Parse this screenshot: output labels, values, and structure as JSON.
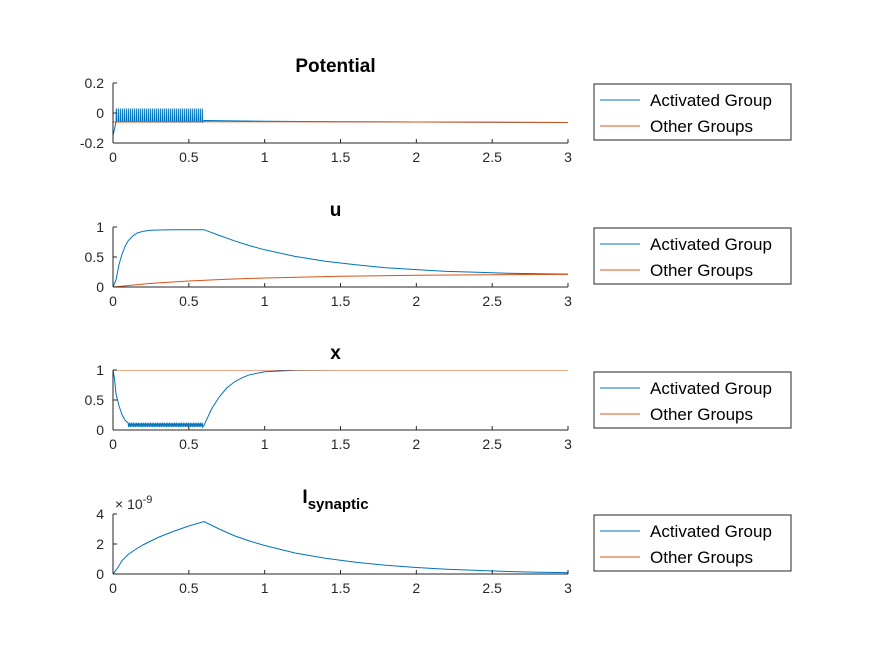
{
  "chart_data": [
    {
      "type": "line",
      "title": "Potential",
      "title_sub": "",
      "xlim": [
        0,
        3
      ],
      "ylim": [
        -0.2,
        0.2
      ],
      "xticks": [
        0,
        0.5,
        1,
        1.5,
        2,
        2.5,
        3
      ],
      "yticks": [
        -0.2,
        0,
        0.2
      ],
      "yticklabels": [
        "-0.2",
        "0",
        "0.2"
      ],
      "exponent": "",
      "legend_position": "right",
      "series": [
        {
          "name": "Activated Group",
          "color": "#0072BD",
          "description": "spiking between about -0.06 and 0.03 from t=0 to t=0.6, then near -0.055 decaying to -0.065",
          "spike_window": [
            0.02,
            0.6
          ],
          "spike_low": -0.06,
          "spike_high": 0.03,
          "spike_count": 44,
          "points": [
            [
              0,
              -0.15
            ],
            [
              0.01,
              -0.06
            ],
            [
              0.6,
              -0.05
            ],
            [
              1,
              -0.055
            ],
            [
              1.5,
              -0.058
            ],
            [
              2,
              -0.06
            ],
            [
              2.5,
              -0.062
            ],
            [
              3,
              -0.063
            ]
          ]
        },
        {
          "name": "Other Groups",
          "color": "#D95319",
          "points": [
            [
              0,
              -0.06
            ],
            [
              0.6,
              -0.058
            ],
            [
              1,
              -0.058
            ],
            [
              2,
              -0.06
            ],
            [
              3,
              -0.063
            ]
          ]
        }
      ]
    },
    {
      "type": "line",
      "title": "u",
      "title_sub": "",
      "xlim": [
        0,
        3
      ],
      "ylim": [
        0,
        1
      ],
      "xticks": [
        0,
        0.5,
        1,
        1.5,
        2,
        2.5,
        3
      ],
      "yticks": [
        0,
        0.5,
        1
      ],
      "yticklabels": [
        "0",
        "0.5",
        "1"
      ],
      "exponent": "",
      "legend_position": "right",
      "series": [
        {
          "name": "Activated Group",
          "color": "#0072BD",
          "points": [
            [
              0,
              0
            ],
            [
              0.02,
              0.12
            ],
            [
              0.04,
              0.38
            ],
            [
              0.06,
              0.55
            ],
            [
              0.08,
              0.68
            ],
            [
              0.1,
              0.77
            ],
            [
              0.13,
              0.85
            ],
            [
              0.16,
              0.9
            ],
            [
              0.2,
              0.93
            ],
            [
              0.25,
              0.945
            ],
            [
              0.3,
              0.95
            ],
            [
              0.4,
              0.955
            ],
            [
              0.5,
              0.955
            ],
            [
              0.6,
              0.955
            ],
            [
              0.7,
              0.86
            ],
            [
              0.8,
              0.77
            ],
            [
              0.9,
              0.69
            ],
            [
              1.0,
              0.62
            ],
            [
              1.2,
              0.51
            ],
            [
              1.4,
              0.43
            ],
            [
              1.6,
              0.37
            ],
            [
              1.8,
              0.32
            ],
            [
              2.0,
              0.29
            ],
            [
              2.2,
              0.26
            ],
            [
              2.4,
              0.245
            ],
            [
              2.6,
              0.23
            ],
            [
              2.8,
              0.22
            ],
            [
              3.0,
              0.215
            ]
          ]
        },
        {
          "name": "Other Groups",
          "color": "#D95319",
          "points": [
            [
              0,
              0
            ],
            [
              0.25,
              0.06
            ],
            [
              0.5,
              0.1
            ],
            [
              0.75,
              0.13
            ],
            [
              1.0,
              0.15
            ],
            [
              1.5,
              0.18
            ],
            [
              2.0,
              0.195
            ],
            [
              2.5,
              0.205
            ],
            [
              3.0,
              0.21
            ]
          ]
        }
      ]
    },
    {
      "type": "line",
      "title": "x",
      "title_sub": "",
      "xlim": [
        0,
        3
      ],
      "ylim": [
        0,
        1
      ],
      "xticks": [
        0,
        0.5,
        1,
        1.5,
        2,
        2.5,
        3
      ],
      "yticks": [
        0,
        0.5,
        1
      ],
      "yticklabels": [
        "0",
        "0.5",
        "1"
      ],
      "exponent": "",
      "legend_position": "right",
      "series": [
        {
          "name": "Activated Group",
          "color": "#0072BD",
          "description": "drops from 1 to about 0.05-0.12 during t=0 to 0.6 with sawtooth, then recovers to 1 by t=1.2",
          "sawtooth_window": [
            0.02,
            0.6
          ],
          "sawtooth_low": 0.05,
          "sawtooth_high": 0.12,
          "points": [
            [
              0,
              1
            ],
            [
              0.01,
              0.85
            ],
            [
              0.02,
              0.6
            ],
            [
              0.04,
              0.4
            ],
            [
              0.06,
              0.25
            ],
            [
              0.08,
              0.16
            ],
            [
              0.1,
              0.12
            ],
            [
              0.15,
              0.1
            ],
            [
              0.3,
              0.09
            ],
            [
              0.6,
              0.08
            ],
            [
              0.65,
              0.35
            ],
            [
              0.7,
              0.55
            ],
            [
              0.75,
              0.7
            ],
            [
              0.8,
              0.8
            ],
            [
              0.85,
              0.87
            ],
            [
              0.9,
              0.92
            ],
            [
              1.0,
              0.97
            ],
            [
              1.2,
              0.995
            ],
            [
              1.5,
              1
            ],
            [
              3.0,
              1
            ]
          ]
        },
        {
          "name": "Other Groups",
          "color": "#D95319",
          "points": [
            [
              0,
              1
            ],
            [
              3.0,
              1
            ]
          ]
        }
      ]
    },
    {
      "type": "line",
      "title": "I",
      "title_sub": "synaptic",
      "xlim": [
        0,
        3
      ],
      "ylim": [
        0,
        4
      ],
      "xticks": [
        0,
        0.5,
        1,
        1.5,
        2,
        2.5,
        3
      ],
      "yticks": [
        0,
        2,
        4
      ],
      "yticklabels": [
        "0",
        "2",
        "4"
      ],
      "exponent": "× 10",
      "exponent_power": "-9",
      "legend_position": "right",
      "series": [
        {
          "name": "Activated Group",
          "color": "#0072BD",
          "points": [
            [
              0,
              0
            ],
            [
              0.03,
              0.4
            ],
            [
              0.06,
              0.9
            ],
            [
              0.1,
              1.3
            ],
            [
              0.15,
              1.65
            ],
            [
              0.2,
              1.95
            ],
            [
              0.3,
              2.45
            ],
            [
              0.4,
              2.85
            ],
            [
              0.5,
              3.2
            ],
            [
              0.6,
              3.5
            ],
            [
              0.7,
              3.0
            ],
            [
              0.8,
              2.55
            ],
            [
              0.9,
              2.2
            ],
            [
              1.0,
              1.9
            ],
            [
              1.2,
              1.4
            ],
            [
              1.4,
              1.05
            ],
            [
              1.6,
              0.78
            ],
            [
              1.8,
              0.58
            ],
            [
              2.0,
              0.43
            ],
            [
              2.2,
              0.32
            ],
            [
              2.4,
              0.24
            ],
            [
              2.6,
              0.17
            ],
            [
              2.8,
              0.12
            ],
            [
              3.0,
              0.09
            ]
          ]
        },
        {
          "name": "Other Groups",
          "color": "#D95319",
          "points": [
            [
              0,
              0
            ],
            [
              3.0,
              0
            ]
          ]
        }
      ]
    }
  ]
}
